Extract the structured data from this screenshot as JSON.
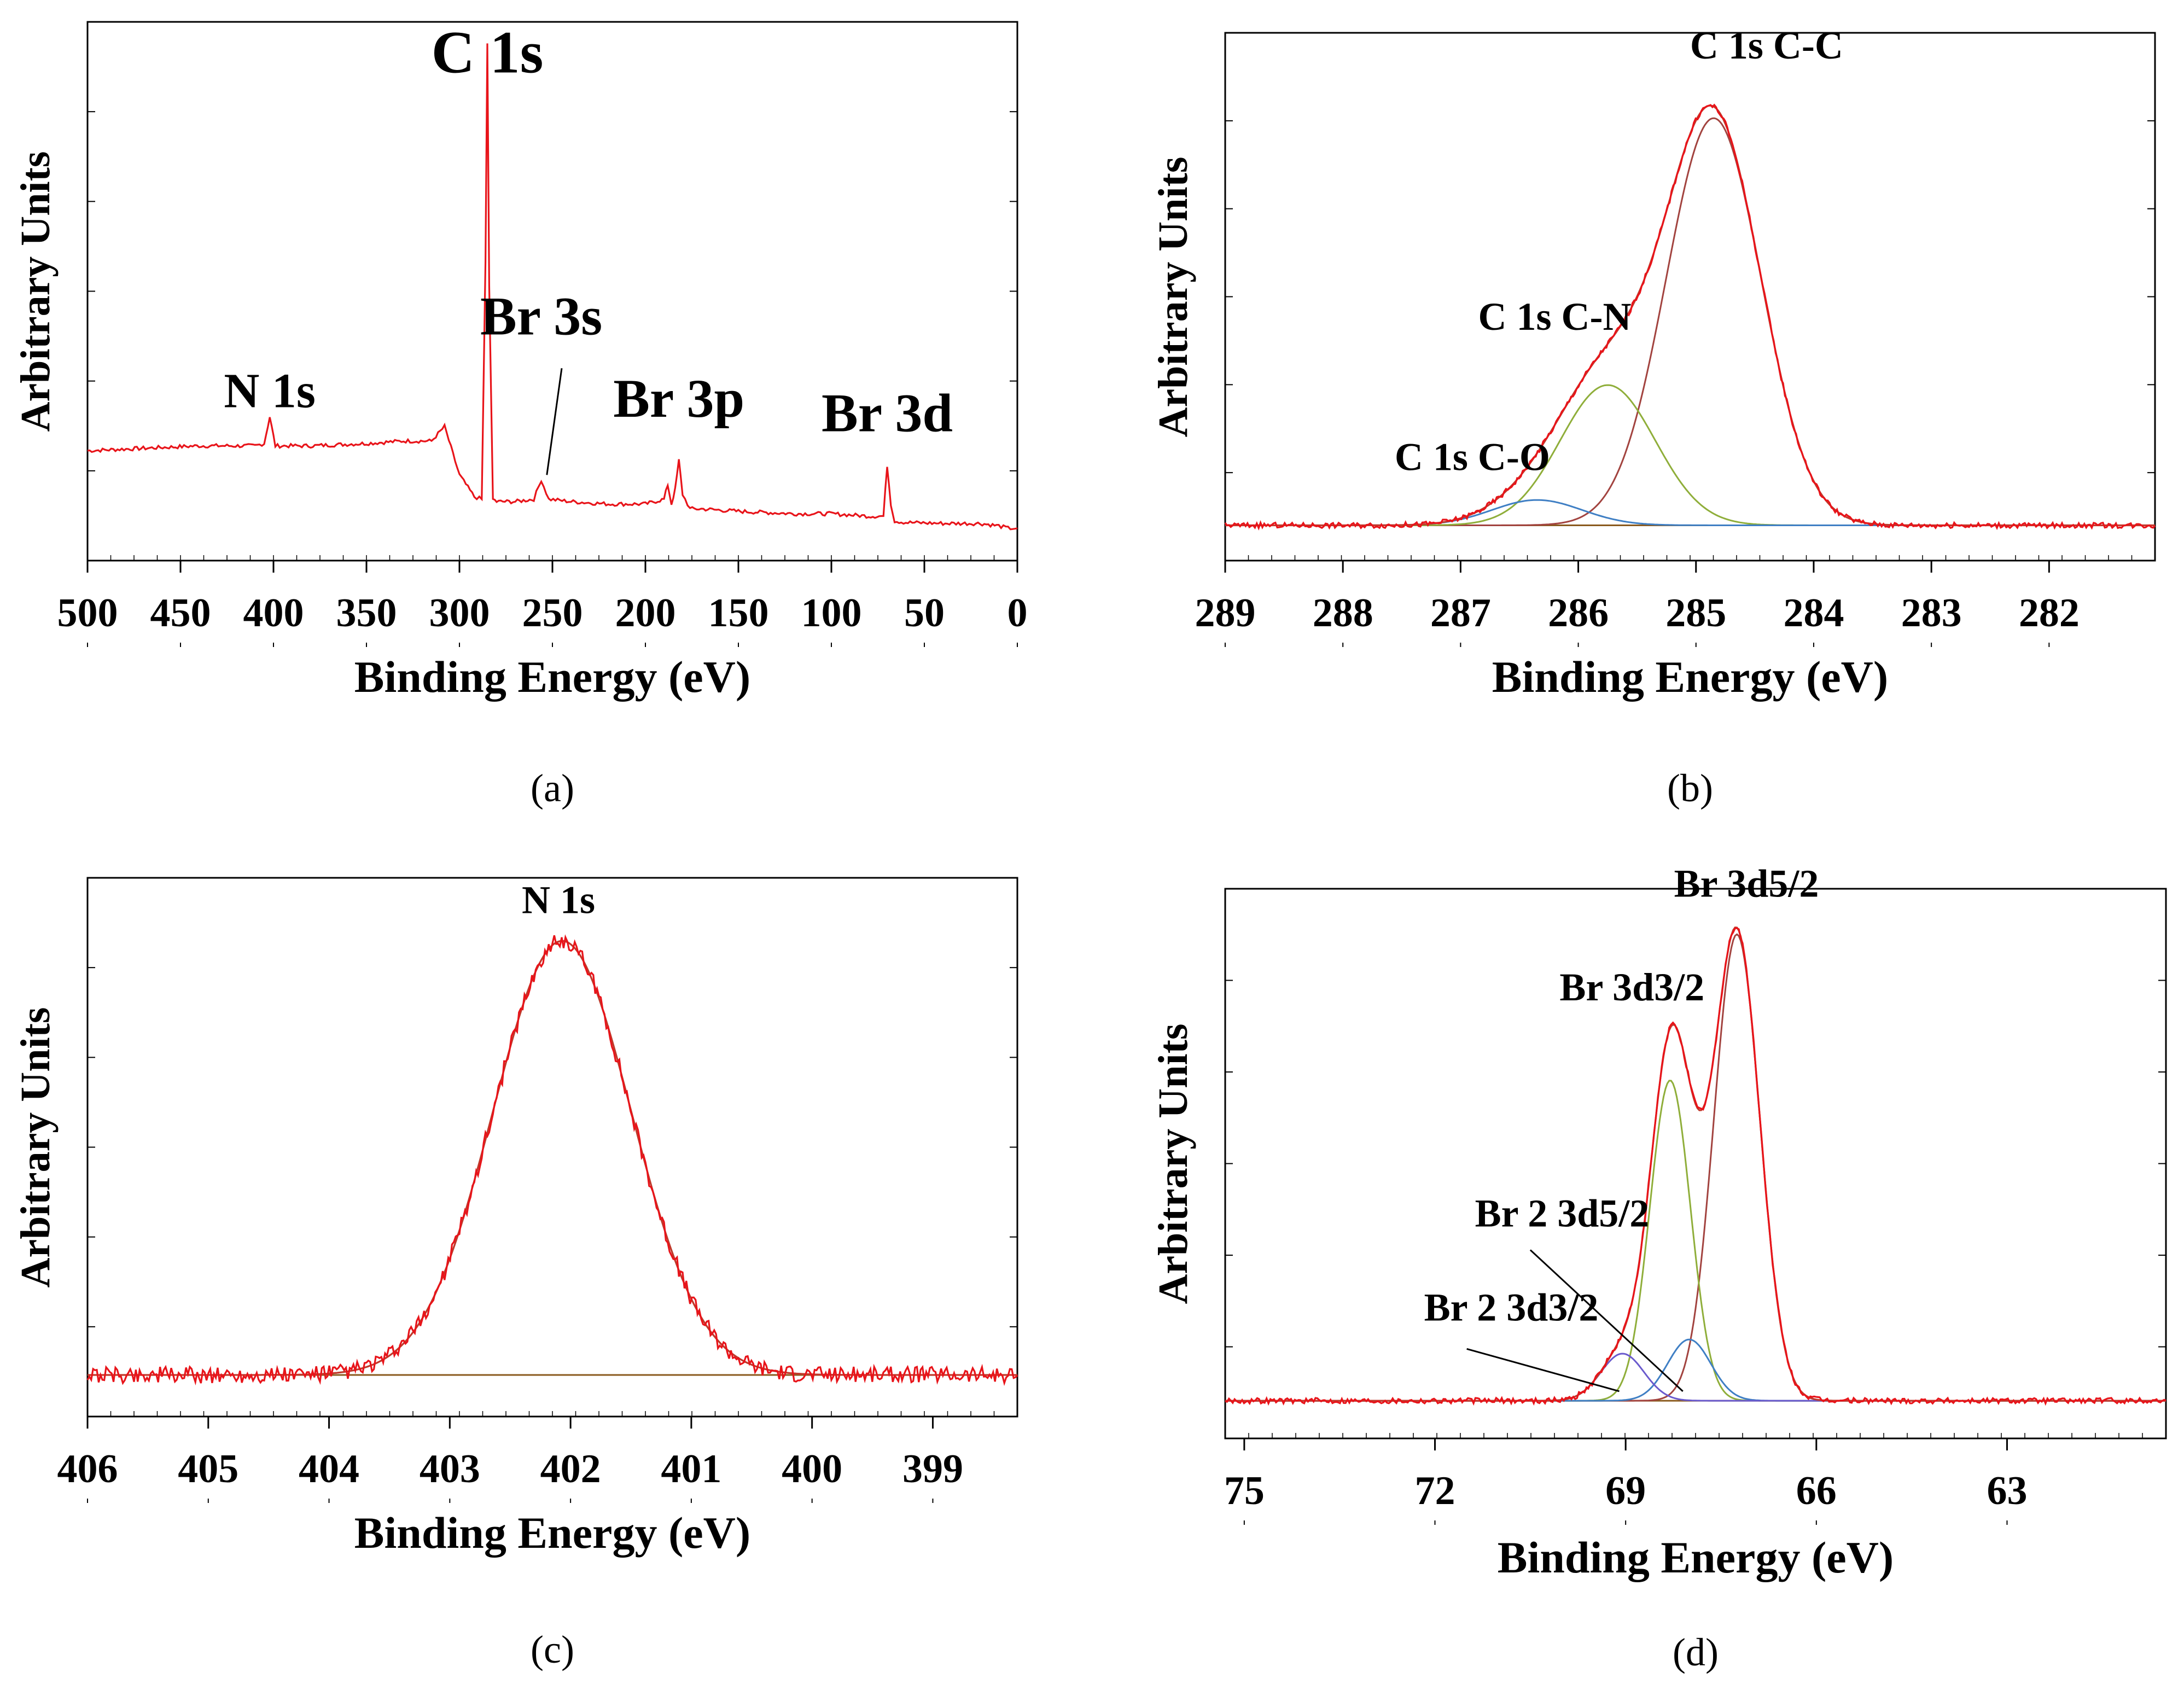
{
  "figure": {
    "panels": [
      {
        "id": "a",
        "panel_label": "(a)"
      },
      {
        "id": "b",
        "panel_label": "(b)"
      },
      {
        "id": "c",
        "panel_label": "(c)"
      },
      {
        "id": "d",
        "panel_label": "(d)"
      }
    ]
  },
  "colors": {
    "spectrum": "#e8141a",
    "envelope": "#c0392b",
    "component_cc": "#a2433f",
    "component_green": "#8fae3a",
    "component_blue": "#3f7fc4",
    "component_purple": "#6a5acd",
    "baseline": "#8a5a1e",
    "axis": "#000000"
  },
  "chart_data": [
    {
      "id": "a",
      "type": "line",
      "title": "",
      "xlabel": "Binding Energy (eV)",
      "ylabel": "Arbitrary Units",
      "xlim": [
        500,
        0
      ],
      "ylim": [
        0,
        1
      ],
      "x_reversed": true,
      "xticks": [
        500,
        450,
        400,
        350,
        300,
        250,
        200,
        150,
        100,
        50,
        0
      ],
      "annotations": [
        {
          "text": "C 1s",
          "x": 285,
          "y": 0.94
        },
        {
          "text": "N 1s",
          "x": 402,
          "y": 0.25
        },
        {
          "text": "Br 3s",
          "x": 256,
          "y": 0.4
        },
        {
          "text": "Br 3p",
          "x": 182,
          "y": 0.23
        },
        {
          "text": "Br 3d",
          "x": 70,
          "y": 0.2
        }
      ],
      "series": [
        {
          "name": "survey",
          "color_key": "spectrum",
          "x": [
            500,
            470,
            440,
            410,
            405,
            402,
            399,
            380,
            350,
            330,
            315,
            308,
            300,
            292,
            288,
            286,
            285,
            284,
            282,
            280,
            270,
            260,
            256,
            252,
            240,
            220,
            200,
            190,
            188,
            186,
            184,
            182,
            180,
            176,
            170,
            150,
            120,
            100,
            80,
            72,
            70,
            68,
            66,
            60,
            40,
            20,
            10,
            5,
            0
          ],
          "y": [
            0.16,
            0.165,
            0.17,
            0.17,
            0.175,
            0.23,
            0.17,
            0.17,
            0.175,
            0.18,
            0.18,
            0.21,
            0.11,
            0.065,
            0.06,
            0.55,
            1.0,
            0.5,
            0.06,
            0.055,
            0.055,
            0.06,
            0.1,
            0.06,
            0.055,
            0.05,
            0.05,
            0.06,
            0.09,
            0.05,
            0.08,
            0.14,
            0.07,
            0.04,
            0.04,
            0.035,
            0.03,
            0.03,
            0.025,
            0.025,
            0.13,
            0.05,
            0.015,
            0.012,
            0.01,
            0.01,
            0.005,
            0.0,
            0.0
          ]
        }
      ]
    },
    {
      "id": "b",
      "type": "line",
      "title": "",
      "xlabel": "Binding Energy (eV)",
      "ylabel": "Arbitrary Units",
      "xlim": [
        289,
        281.1
      ],
      "ylim": [
        0,
        1.05
      ],
      "x_reversed": true,
      "xticks": [
        289,
        288,
        287,
        286,
        285,
        284,
        283,
        282
      ],
      "annotations": [
        {
          "text": "C 1s C-C",
          "x": 284.4,
          "y": 1.04
        },
        {
          "text": "C 1s C-N",
          "x": 286.2,
          "y": 0.44
        },
        {
          "text": "C 1s C-O",
          "x": 286.9,
          "y": 0.13
        }
      ],
      "peaks": [
        {
          "name": "C 1s C-C",
          "color_key": "component_cc",
          "center": 284.85,
          "height": 0.9,
          "fwhm": 0.95
        },
        {
          "name": "C 1s C-N",
          "color_key": "component_green",
          "center": 285.75,
          "height": 0.31,
          "fwhm": 0.95
        },
        {
          "name": "C 1s C-O",
          "color_key": "component_blue",
          "center": 286.35,
          "height": 0.056,
          "fwhm": 0.9
        }
      ],
      "baseline": 0.008,
      "noise": 0.006
    },
    {
      "id": "c",
      "type": "line",
      "title": "",
      "xlabel": "Binding Energy (eV)",
      "ylabel": "Arbitrary Units",
      "xlim": [
        406,
        398.3
      ],
      "ylim": [
        0,
        1.05
      ],
      "x_reversed": true,
      "xticks": [
        406,
        405,
        404,
        403,
        402,
        401,
        400,
        399
      ],
      "annotations": [
        {
          "text": "N 1s",
          "x": 402.1,
          "y": 1.02
        }
      ],
      "peaks": [
        {
          "name": "N 1s",
          "color_key": "component_cc",
          "center": 402.07,
          "height": 0.94,
          "fwhm": 1.35
        }
      ],
      "baseline": 0.02,
      "noise": 0.018
    },
    {
      "id": "d",
      "type": "line",
      "title": "",
      "xlabel": "Binding Energy (eV)",
      "ylabel": "Arbitrary Units",
      "xlim": [
        75.3,
        60.5
      ],
      "ylim": [
        0,
        1.05
      ],
      "x_reversed": true,
      "xticks": [
        75,
        72,
        69,
        66,
        63
      ],
      "annotations": [
        {
          "text": "Br 3d5/2",
          "x": 67.1,
          "y": 1.08
        },
        {
          "text": "Br 3d3/2",
          "x": 68.9,
          "y": 0.86
        },
        {
          "text": "Br 2 3d5/2",
          "x": 70.0,
          "y": 0.38
        },
        {
          "text": "Br 2 3d3/2",
          "x": 70.8,
          "y": 0.18
        }
      ],
      "peaks": [
        {
          "name": "Br 3d5/2",
          "color_key": "component_cc",
          "center": 67.25,
          "height": 0.99,
          "fwhm": 0.85
        },
        {
          "name": "Br 3d3/2",
          "color_key": "component_green",
          "center": 68.3,
          "height": 0.68,
          "fwhm": 0.75
        },
        {
          "name": "Br 2 3d5/2",
          "color_key": "component_blue",
          "center": 68.0,
          "height": 0.13,
          "fwhm": 0.8
        },
        {
          "name": "Br 2 3d3/2",
          "color_key": "component_purple",
          "center": 69.05,
          "height": 0.1,
          "fwhm": 0.8
        }
      ],
      "baseline": 0.01,
      "noise": 0.006
    }
  ]
}
